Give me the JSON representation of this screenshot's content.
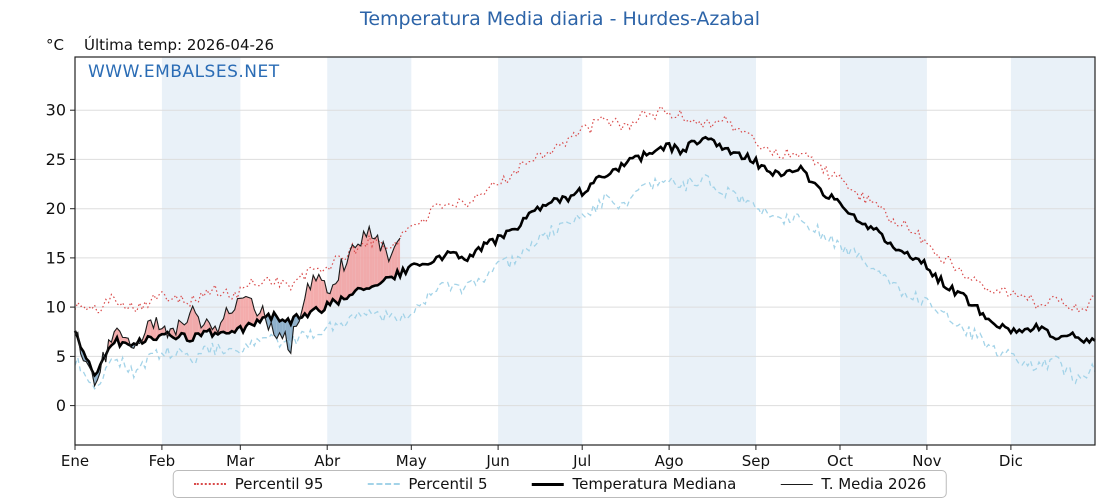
{
  "header": {
    "title": "Temperatura Media diaria - Hurdes-Azabal",
    "unit": "°C",
    "last_temp": "Última temp: 2026-04-26",
    "watermark": "WWW.EMBALSES.NET"
  },
  "chart_data": {
    "type": "line",
    "title": "Temperatura Media diaria - Hurdes-Azabal",
    "ylabel": "°C",
    "x_months": [
      "Ene",
      "Feb",
      "Mar",
      "Abr",
      "May",
      "Jun",
      "Jul",
      "Ago",
      "Sep",
      "Oct",
      "Nov",
      "Dic"
    ],
    "month_start_days": [
      0,
      31,
      59,
      90,
      120,
      151,
      181,
      212,
      243,
      273,
      304,
      334
    ],
    "days_in_year": 364,
    "step_days": 7,
    "yticks": [
      0,
      5,
      10,
      15,
      20,
      25,
      30
    ],
    "ylim": [
      -4,
      35.4
    ],
    "grid": true,
    "legend_position": "bottom",
    "colors": {
      "title_blue": "#2d64a8",
      "p95": "#d94a4a",
      "p5": "#a3d3e8",
      "median": "#000000",
      "t2026": "#1a1a1a",
      "fill_above": "#f29e9e",
      "fill_below": "#7ba3c2",
      "band": "#e9f1f8",
      "grid": "#dddddd",
      "spine": "#222222"
    },
    "series": [
      {
        "name": "Percentil 95",
        "style": "dotted",
        "noise": 0.65,
        "values": [
          10.2,
          9.6,
          11.0,
          10.0,
          10.8,
          11.3,
          10.6,
          11.8,
          11.0,
          12.4,
          12.9,
          12.1,
          13.6,
          14.2,
          15.6,
          16.8,
          16.0,
          18.0,
          19.4,
          20.8,
          20.0,
          21.8,
          23.2,
          24.8,
          25.8,
          26.8,
          28.0,
          29.0,
          28.4,
          29.4,
          29.9,
          29.3,
          28.7,
          29.1,
          27.8,
          26.4,
          25.4,
          25.9,
          24.3,
          22.8,
          21.4,
          19.8,
          18.6,
          17.2,
          15.4,
          13.9,
          12.6,
          11.9,
          11.2,
          10.4,
          10.9,
          9.9,
          10.6
        ]
      },
      {
        "name": "Percentil 5",
        "style": "dashed",
        "noise": 0.7,
        "values": [
          4.6,
          1.9,
          4.9,
          3.4,
          5.1,
          5.4,
          4.7,
          5.9,
          5.1,
          6.1,
          6.7,
          6.2,
          7.4,
          7.9,
          8.9,
          9.6,
          9.0,
          9.4,
          10.9,
          12.4,
          11.8,
          13.3,
          14.4,
          15.9,
          17.3,
          18.4,
          19.4,
          20.9,
          20.4,
          21.9,
          22.8,
          22.4,
          22.9,
          21.9,
          20.9,
          19.9,
          18.9,
          19.4,
          17.4,
          16.4,
          14.9,
          13.4,
          11.9,
          10.9,
          9.9,
          8.4,
          6.9,
          5.4,
          4.9,
          3.9,
          4.4,
          2.9,
          3.9
        ]
      },
      {
        "name": "Temperatura Mediana",
        "style": "solid-thick",
        "noise": 0.45,
        "values": [
          7.2,
          3.2,
          6.6,
          6.1,
          7.1,
          7.0,
          6.9,
          7.4,
          7.2,
          8.2,
          9.1,
          8.7,
          9.3,
          10.2,
          11.4,
          12.1,
          12.9,
          13.9,
          14.4,
          15.4,
          15.1,
          16.4,
          17.4,
          18.9,
          20.4,
          20.9,
          21.9,
          23.4,
          24.4,
          25.4,
          26.4,
          25.9,
          27.3,
          26.4,
          25.4,
          24.4,
          23.4,
          23.9,
          21.9,
          20.4,
          18.9,
          17.4,
          15.9,
          14.9,
          12.9,
          11.4,
          9.9,
          8.4,
          7.6,
          8.1,
          6.6,
          7.1,
          6.4
        ]
      },
      {
        "name": "T. Media 2026",
        "style": "solid-thin",
        "noise": 0.95,
        "days": [
          0,
          7,
          14,
          21,
          28,
          35,
          42,
          49,
          56,
          63,
          70,
          77,
          84,
          91,
          98,
          105,
          112,
          116
        ],
        "values": [
          7.4,
          2.3,
          7.6,
          5.9,
          8.6,
          7.2,
          9.2,
          7.6,
          9.8,
          10.8,
          8.1,
          6.2,
          12.6,
          12.1,
          15.6,
          18.2,
          14.9,
          16.1
        ]
      }
    ]
  }
}
